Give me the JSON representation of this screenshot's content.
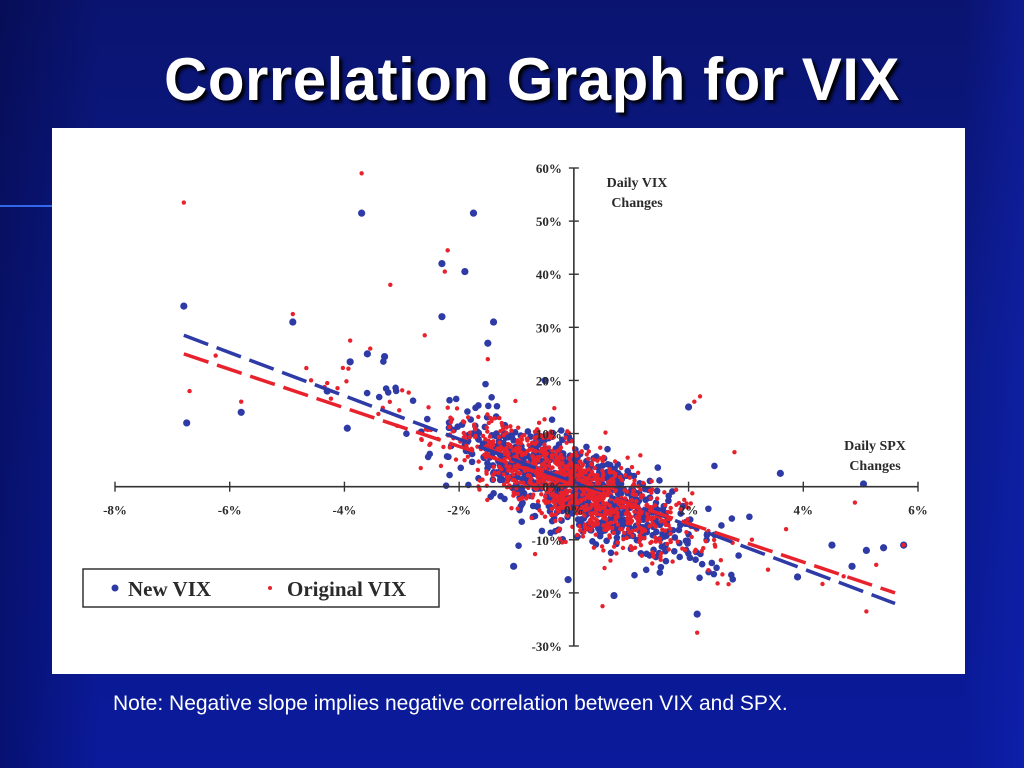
{
  "slide": {
    "title": "Correlation Graph for VIX",
    "note": "Note:  Negative slope implies negative correlation between VIX and SPX."
  },
  "colors": {
    "background": "#0b1a8a",
    "new_vix": "#2e3aa6",
    "original_vix": "#e8222c",
    "axis": "#333333"
  },
  "chart_data": {
    "type": "scatter",
    "title": "",
    "xlabel": "Daily SPX Changes",
    "ylabel": "Daily VIX Changes",
    "xlim": [
      -8,
      6
    ],
    "ylim": [
      -30,
      60
    ],
    "x_ticks": [
      {
        "value": -8,
        "label": "-8%"
      },
      {
        "value": -6,
        "label": "-6%"
      },
      {
        "value": -4,
        "label": "-4%"
      },
      {
        "value": -2,
        "label": "-2%"
      },
      {
        "value": 0,
        "label": "0%"
      },
      {
        "value": 2,
        "label": "2%"
      },
      {
        "value": 4,
        "label": "4%"
      },
      {
        "value": 6,
        "label": "6%"
      }
    ],
    "y_ticks": [
      {
        "value": 60,
        "label": "60%"
      },
      {
        "value": 50,
        "label": "50%"
      },
      {
        "value": 40,
        "label": "40%"
      },
      {
        "value": 30,
        "label": "30%"
      },
      {
        "value": 20,
        "label": "20%"
      },
      {
        "value": 10,
        "label": "10%"
      },
      {
        "value": 0,
        "label": "0%"
      },
      {
        "value": -10,
        "label": "-10%"
      },
      {
        "value": -20,
        "label": "-20%"
      },
      {
        "value": -30,
        "label": "-30%"
      }
    ],
    "legend": {
      "position": "bottom-left",
      "entries": [
        {
          "name": "New VIX",
          "color": "#2e3aa6"
        },
        {
          "name": "Original VIX",
          "color": "#e8222c"
        }
      ]
    },
    "series": [
      {
        "name": "New VIX",
        "color": "#2e3aa6",
        "cluster": {
          "x_mean": 0.0,
          "x_sd": 0.95,
          "slope": -4.8,
          "noise_sd": 4.2,
          "count": 800
        },
        "outliers": [
          {
            "x": -6.8,
            "y": 34
          },
          {
            "x": -6.75,
            "y": 12
          },
          {
            "x": -5.8,
            "y": 14
          },
          {
            "x": -4.9,
            "y": 31
          },
          {
            "x": -3.7,
            "y": 51.5
          },
          {
            "x": -3.6,
            "y": 25
          },
          {
            "x": -3.9,
            "y": 23.5
          },
          {
            "x": -3.3,
            "y": 24.5
          },
          {
            "x": -2.3,
            "y": 42
          },
          {
            "x": -1.9,
            "y": 40.5
          },
          {
            "x": -1.75,
            "y": 51.5
          },
          {
            "x": -2.3,
            "y": 32
          },
          {
            "x": -1.4,
            "y": 31
          },
          {
            "x": -1.5,
            "y": 27
          },
          {
            "x": -4.3,
            "y": 18
          },
          {
            "x": -0.1,
            "y": -17.5
          },
          {
            "x": 0.7,
            "y": -20.5
          },
          {
            "x": 2.15,
            "y": -24
          },
          {
            "x": 2.0,
            "y": 15
          },
          {
            "x": 3.6,
            "y": 2.5
          },
          {
            "x": 5.05,
            "y": 0.5
          },
          {
            "x": 5.1,
            "y": -12
          },
          {
            "x": 5.4,
            "y": -11.5
          },
          {
            "x": 5.75,
            "y": -11
          },
          {
            "x": 4.5,
            "y": -11
          },
          {
            "x": 4.85,
            "y": -15
          },
          {
            "x": 3.9,
            "y": -17
          },
          {
            "x": -1.05,
            "y": -15
          },
          {
            "x": -0.5,
            "y": 20
          },
          {
            "x": -3.95,
            "y": 11
          }
        ],
        "trendline": {
          "x": [
            -6.8,
            5.6
          ],
          "y": [
            28.5,
            -22
          ]
        }
      },
      {
        "name": "Original VIX",
        "color": "#e8222c",
        "cluster": {
          "x_mean": 0.0,
          "x_sd": 0.95,
          "slope": -4.4,
          "noise_sd": 4.0,
          "count": 1000
        },
        "outliers": [
          {
            "x": -6.8,
            "y": 53.5
          },
          {
            "x": -6.7,
            "y": 18
          },
          {
            "x": -5.8,
            "y": 16
          },
          {
            "x": -4.9,
            "y": 32.5
          },
          {
            "x": -3.7,
            "y": 59
          },
          {
            "x": -3.2,
            "y": 38
          },
          {
            "x": -2.2,
            "y": 44.5
          },
          {
            "x": -2.25,
            "y": 40.5
          },
          {
            "x": -3.9,
            "y": 27.5
          },
          {
            "x": -4.3,
            "y": 19.5
          },
          {
            "x": -1.5,
            "y": 24
          },
          {
            "x": -2.6,
            "y": 28.5
          },
          {
            "x": 2.15,
            "y": -27.5
          },
          {
            "x": 0.5,
            "y": -22.5
          },
          {
            "x": 2.2,
            "y": 17
          },
          {
            "x": 2.1,
            "y": 16
          },
          {
            "x": 3.7,
            "y": -8
          },
          {
            "x": 5.1,
            "y": -23.5
          },
          {
            "x": 5.75,
            "y": -11
          },
          {
            "x": 4.9,
            "y": -3
          },
          {
            "x": -0.2,
            "y": -10.5
          },
          {
            "x": 2.8,
            "y": 6.5
          },
          {
            "x": -3.55,
            "y": 26
          }
        ],
        "trendline": {
          "x": [
            -6.8,
            5.6
          ],
          "y": [
            25,
            -20
          ]
        }
      }
    ],
    "annotations": [
      {
        "text": "Daily VIX",
        "near": "y-axis top"
      },
      {
        "text": "Changes",
        "near": "y-axis top"
      },
      {
        "text": "Daily SPX",
        "near": "x-axis right"
      },
      {
        "text": "Changes",
        "near": "x-axis right"
      }
    ]
  }
}
